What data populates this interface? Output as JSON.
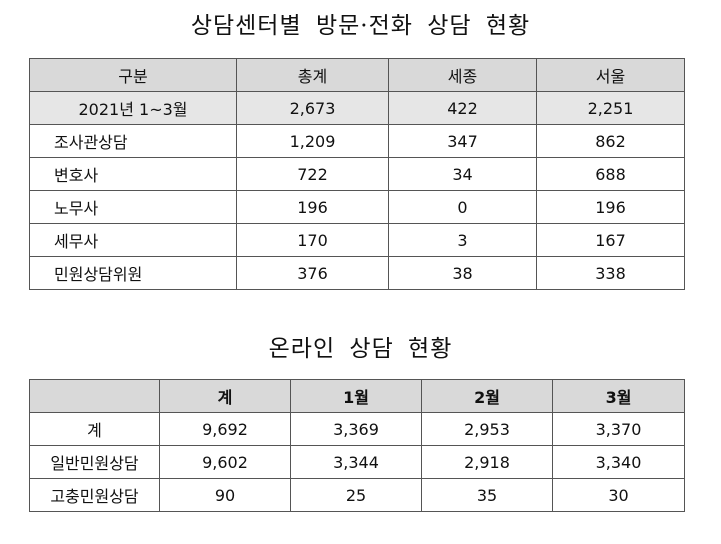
{
  "section1": {
    "title": "상담센터별 방문·전화 상담 현황",
    "headers": [
      "구분",
      "총계",
      "세종",
      "서울"
    ],
    "summary": {
      "label": "2021년 1~3월",
      "values": [
        "2,673",
        "422",
        "2,251"
      ]
    },
    "rows": [
      {
        "label": "조사관상담",
        "values": [
          "1,209",
          "347",
          "862"
        ]
      },
      {
        "label": "변호사",
        "values": [
          "722",
          "34",
          "688"
        ]
      },
      {
        "label": "노무사",
        "values": [
          "196",
          "0",
          "196"
        ]
      },
      {
        "label": "세무사",
        "values": [
          "170",
          "3",
          "167"
        ]
      },
      {
        "label": "민원상담위원",
        "values": [
          "376",
          "38",
          "338"
        ]
      }
    ]
  },
  "section2": {
    "title": "온라인 상담 현황",
    "headers": [
      "",
      "계",
      "1월",
      "2월",
      "3월"
    ],
    "rows": [
      {
        "label": "계",
        "values": [
          "9,692",
          "3,369",
          "2,953",
          "3,370"
        ]
      },
      {
        "label": "일반민원상담",
        "values": [
          "9,602",
          "3,344",
          "2,918",
          "3,340"
        ]
      },
      {
        "label": "고충민원상담",
        "values": [
          "90",
          "25",
          "35",
          "30"
        ]
      }
    ]
  },
  "colors": {
    "header_bg": "#d9d9d9",
    "summary_bg": "#e6e6e6",
    "border": "#555555"
  }
}
